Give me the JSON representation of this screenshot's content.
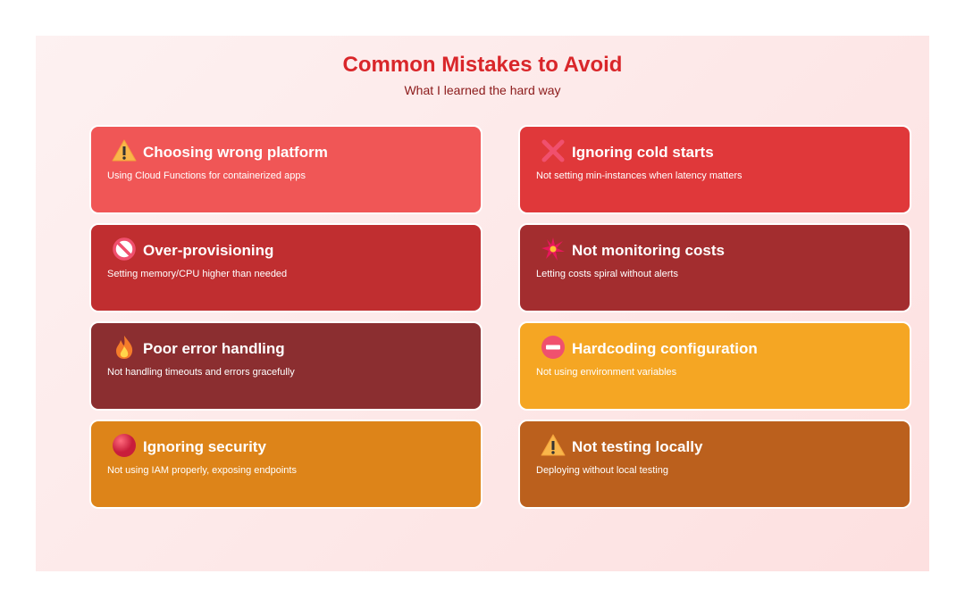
{
  "header": {
    "title": "Common Mistakes to Avoid",
    "subtitle": "What I learned the hard way"
  },
  "cards": [
    {
      "title": "Choosing wrong platform",
      "desc": "Using Cloud Functions for containerized apps",
      "icon": "warning-icon",
      "color": "#f05656"
    },
    {
      "title": "Ignoring cold starts",
      "desc": "Not setting min-instances when latency matters",
      "icon": "cross-mark-icon",
      "color": "#e0383a"
    },
    {
      "title": "Over-provisioning",
      "desc": "Setting memory/CPU higher than needed",
      "icon": "prohibited-icon",
      "color": "#c02e30"
    },
    {
      "title": "Not monitoring costs",
      "desc": "Letting costs spiral without alerts",
      "icon": "explosion-icon",
      "color": "#a32d2f"
    },
    {
      "title": "Poor error handling",
      "desc": "Not handling timeouts and errors gracefully",
      "icon": "fire-icon",
      "color": "#8b2e30"
    },
    {
      "title": "Hardcoding configuration",
      "desc": "Not using environment variables",
      "icon": "no-entry-icon",
      "color": "#f5a623"
    },
    {
      "title": "Ignoring security",
      "desc": "Not using IAM properly, exposing endpoints",
      "icon": "red-circle-icon",
      "color": "#dd8419"
    },
    {
      "title": "Not testing locally",
      "desc": "Deploying without local testing",
      "icon": "warning-icon",
      "color": "#bb601d"
    }
  ]
}
